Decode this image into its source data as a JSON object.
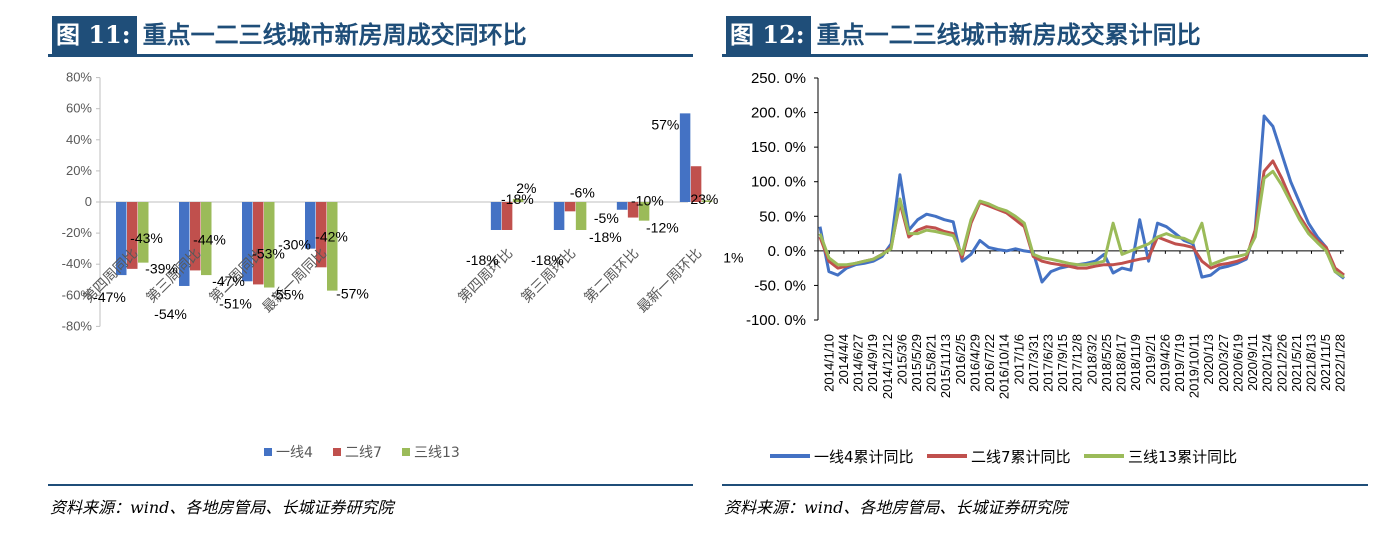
{
  "left": {
    "fig_num": "图 11:",
    "title": "重点一二三线城市新房周成交同环比",
    "source": "资料来源：wind、各地房管局、长城证券研究院"
  },
  "right": {
    "fig_num": "图 12:",
    "title": "重点一二三线城市新房成交累计同比",
    "source": "资料来源：wind、各地房管局、长城证券研究院"
  },
  "colors": {
    "tier1": "#4472c4",
    "tier2": "#c0504d",
    "tier3": "#9bbb59",
    "navy": "#1f4e79"
  },
  "chart_data": [
    {
      "type": "bar",
      "title": "重点一二三线城市新房周成交同环比",
      "categories": [
        "第四周同比",
        "第三周同比",
        "第二周同比",
        "最新一周同比",
        "第四周环比",
        "第三周环比",
        "第二周环比",
        "最新一周环比"
      ],
      "category_gap_after_index": 3,
      "series": [
        {
          "name": "一线4",
          "values": [
            -47,
            -54,
            -51,
            -30,
            -18,
            -18,
            -5,
            57
          ],
          "labels": [
            "-47%",
            "-54%",
            "-51%",
            "-30%",
            "-18%",
            "-18%",
            "-5%",
            "57%"
          ]
        },
        {
          "name": "二线7",
          "values": [
            -43,
            -44,
            -53,
            -42,
            -18,
            -6,
            -10,
            23
          ],
          "labels": [
            "-43%",
            "-44%",
            "-53%",
            "-42%",
            "-18%",
            "-6%",
            "-10%",
            "23%"
          ]
        },
        {
          "name": "三线13",
          "values": [
            -39,
            -47,
            -55,
            -57,
            2,
            -18,
            -12,
            1
          ],
          "labels": [
            "-39%",
            "-47%",
            "-55%",
            "-57%",
            "2%",
            "-18%",
            "-12%",
            "1%"
          ]
        }
      ],
      "yticks": [
        "80%",
        "60%",
        "40%",
        "20%",
        "0",
        "-20%",
        "-40%",
        "-60%",
        "-80%"
      ],
      "ylim": [
        -80,
        80
      ],
      "grid": false,
      "legend": "bottom"
    },
    {
      "type": "line",
      "title": "重点一二三线城市新房成交累计同比",
      "x_ticks": [
        "2014/1/10",
        "2014/4/4",
        "2014/6/27",
        "2014/9/19",
        "2014/12/12",
        "2015/3/6",
        "2015/5/29",
        "2015/8/21",
        "2015/11/13",
        "2016/2/5",
        "2016/4/29",
        "2016/7/22",
        "2016/10/14",
        "2017/1/6",
        "2017/3/31",
        "2017/6/23",
        "2017/9/15",
        "2017/12/8",
        "2018/3/2",
        "2018/5/25",
        "2018/8/17",
        "2018/11/9",
        "2019/2/1",
        "2019/4/26",
        "2019/7/19",
        "2019/10/11",
        "2020/1/3",
        "2020/3/27",
        "2020/6/19",
        "2020/9/11",
        "2020/12/4",
        "2021/2/26",
        "2021/5/21",
        "2021/8/13",
        "2021/11/5",
        "2022/1/28"
      ],
      "yticks": [
        "250. 0%",
        "200. 0%",
        "150. 0%",
        "100. 0%",
        "50. 0%",
        "0. 0%",
        "-50. 0%",
        "-100. 0%"
      ],
      "ylim": [
        -100,
        250
      ],
      "grid": false,
      "legend": "bottom",
      "series": [
        {
          "name": "一线4累计同比",
          "values": [
            35,
            -30,
            -35,
            -25,
            -20,
            -18,
            -15,
            -8,
            10,
            110,
            30,
            45,
            53,
            50,
            45,
            42,
            -15,
            -5,
            15,
            5,
            2,
            0,
            3,
            0,
            -2,
            -45,
            -30,
            -25,
            -22,
            -20,
            -18,
            -15,
            -5,
            -32,
            -25,
            -28,
            45,
            -15,
            40,
            35,
            25,
            15,
            10,
            -38,
            -35,
            -25,
            -22,
            -18,
            -12,
            30,
            195,
            180,
            140,
            100,
            70,
            40,
            20,
            5,
            -30,
            -40
          ]
        },
        {
          "name": "二线7累计同比",
          "values": [
            20,
            -15,
            -25,
            -22,
            -18,
            -15,
            -12,
            -5,
            5,
            70,
            20,
            30,
            35,
            33,
            28,
            25,
            -10,
            40,
            70,
            65,
            60,
            55,
            45,
            35,
            -8,
            -15,
            -18,
            -20,
            -22,
            -25,
            -25,
            -22,
            -20,
            -20,
            -18,
            -15,
            -12,
            -10,
            20,
            15,
            10,
            8,
            5,
            -15,
            -25,
            -20,
            -18,
            -15,
            -10,
            30,
            115,
            130,
            105,
            75,
            50,
            30,
            15,
            5,
            -25,
            -35
          ]
        },
        {
          "name": "三线13累计同比",
          "values": [
            25,
            -10,
            -20,
            -20,
            -18,
            -15,
            -12,
            -5,
            3,
            75,
            25,
            25,
            30,
            28,
            25,
            22,
            -5,
            45,
            72,
            68,
            62,
            58,
            50,
            40,
            -5,
            -10,
            -12,
            -15,
            -18,
            -20,
            -20,
            -18,
            -15,
            40,
            -5,
            0,
            5,
            10,
            20,
            25,
            20,
            18,
            12,
            40,
            -20,
            -15,
            -10,
            -8,
            -5,
            20,
            105,
            115,
            95,
            70,
            45,
            25,
            12,
            0,
            -30,
            -38
          ]
        }
      ]
    }
  ]
}
